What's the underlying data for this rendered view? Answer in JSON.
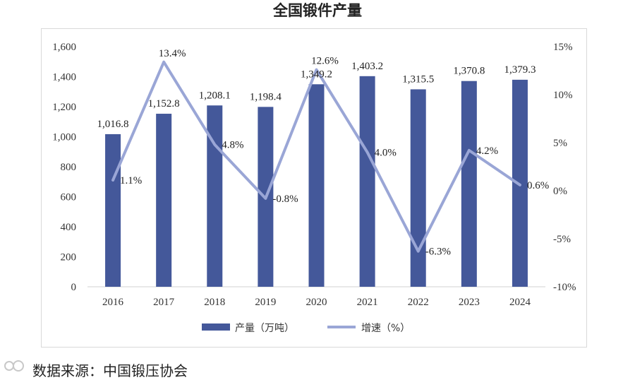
{
  "title": "全国锻件产量",
  "source": "数据来源：中国锻压协会",
  "chart_data": {
    "type": "bar",
    "categories": [
      "2016",
      "2017",
      "2018",
      "2019",
      "2020",
      "2021",
      "2022",
      "2023",
      "2024"
    ],
    "series": [
      {
        "name": "产量（万吨）",
        "type": "bar",
        "axis": "left",
        "color": "#44589a",
        "values": [
          1016.8,
          1152.8,
          1208.1,
          1198.4,
          1349.2,
          1403.2,
          1315.5,
          1370.8,
          1379.3
        ],
        "labels": [
          "1,016.8",
          "1,152.8",
          "1,208.1",
          "1,198.4",
          "1,349.2",
          "1,403.2",
          "1,315.5",
          "1,370.8",
          "1,379.3"
        ]
      },
      {
        "name": "增速（%）",
        "type": "line",
        "axis": "right",
        "color": "#9aa6d6",
        "values": [
          1.1,
          13.4,
          4.8,
          -0.8,
          12.6,
          4.0,
          -6.3,
          4.2,
          0.6
        ],
        "labels": [
          "1.1%",
          "13.4%",
          "4.8%",
          "-0.8%",
          "12.6%",
          "4.0%",
          "-6.3%",
          "4.2%",
          "0.6%"
        ]
      }
    ],
    "y_left": {
      "ylim": [
        0,
        1600
      ],
      "ticks": [
        0,
        200,
        400,
        600,
        800,
        1000,
        1200,
        1400,
        1600
      ],
      "tick_labels": [
        "0",
        "200",
        "400",
        "600",
        "800",
        "1,000",
        "1,200",
        "1,400",
        "1,600"
      ]
    },
    "y_right": {
      "ylim": [
        -10,
        15
      ],
      "ticks": [
        -10,
        -5,
        0,
        5,
        10,
        15
      ],
      "tick_labels": [
        "-10%",
        "-5%",
        "0%",
        "5%",
        "10%",
        "15%"
      ]
    },
    "grid": false,
    "legend": "bottom"
  }
}
